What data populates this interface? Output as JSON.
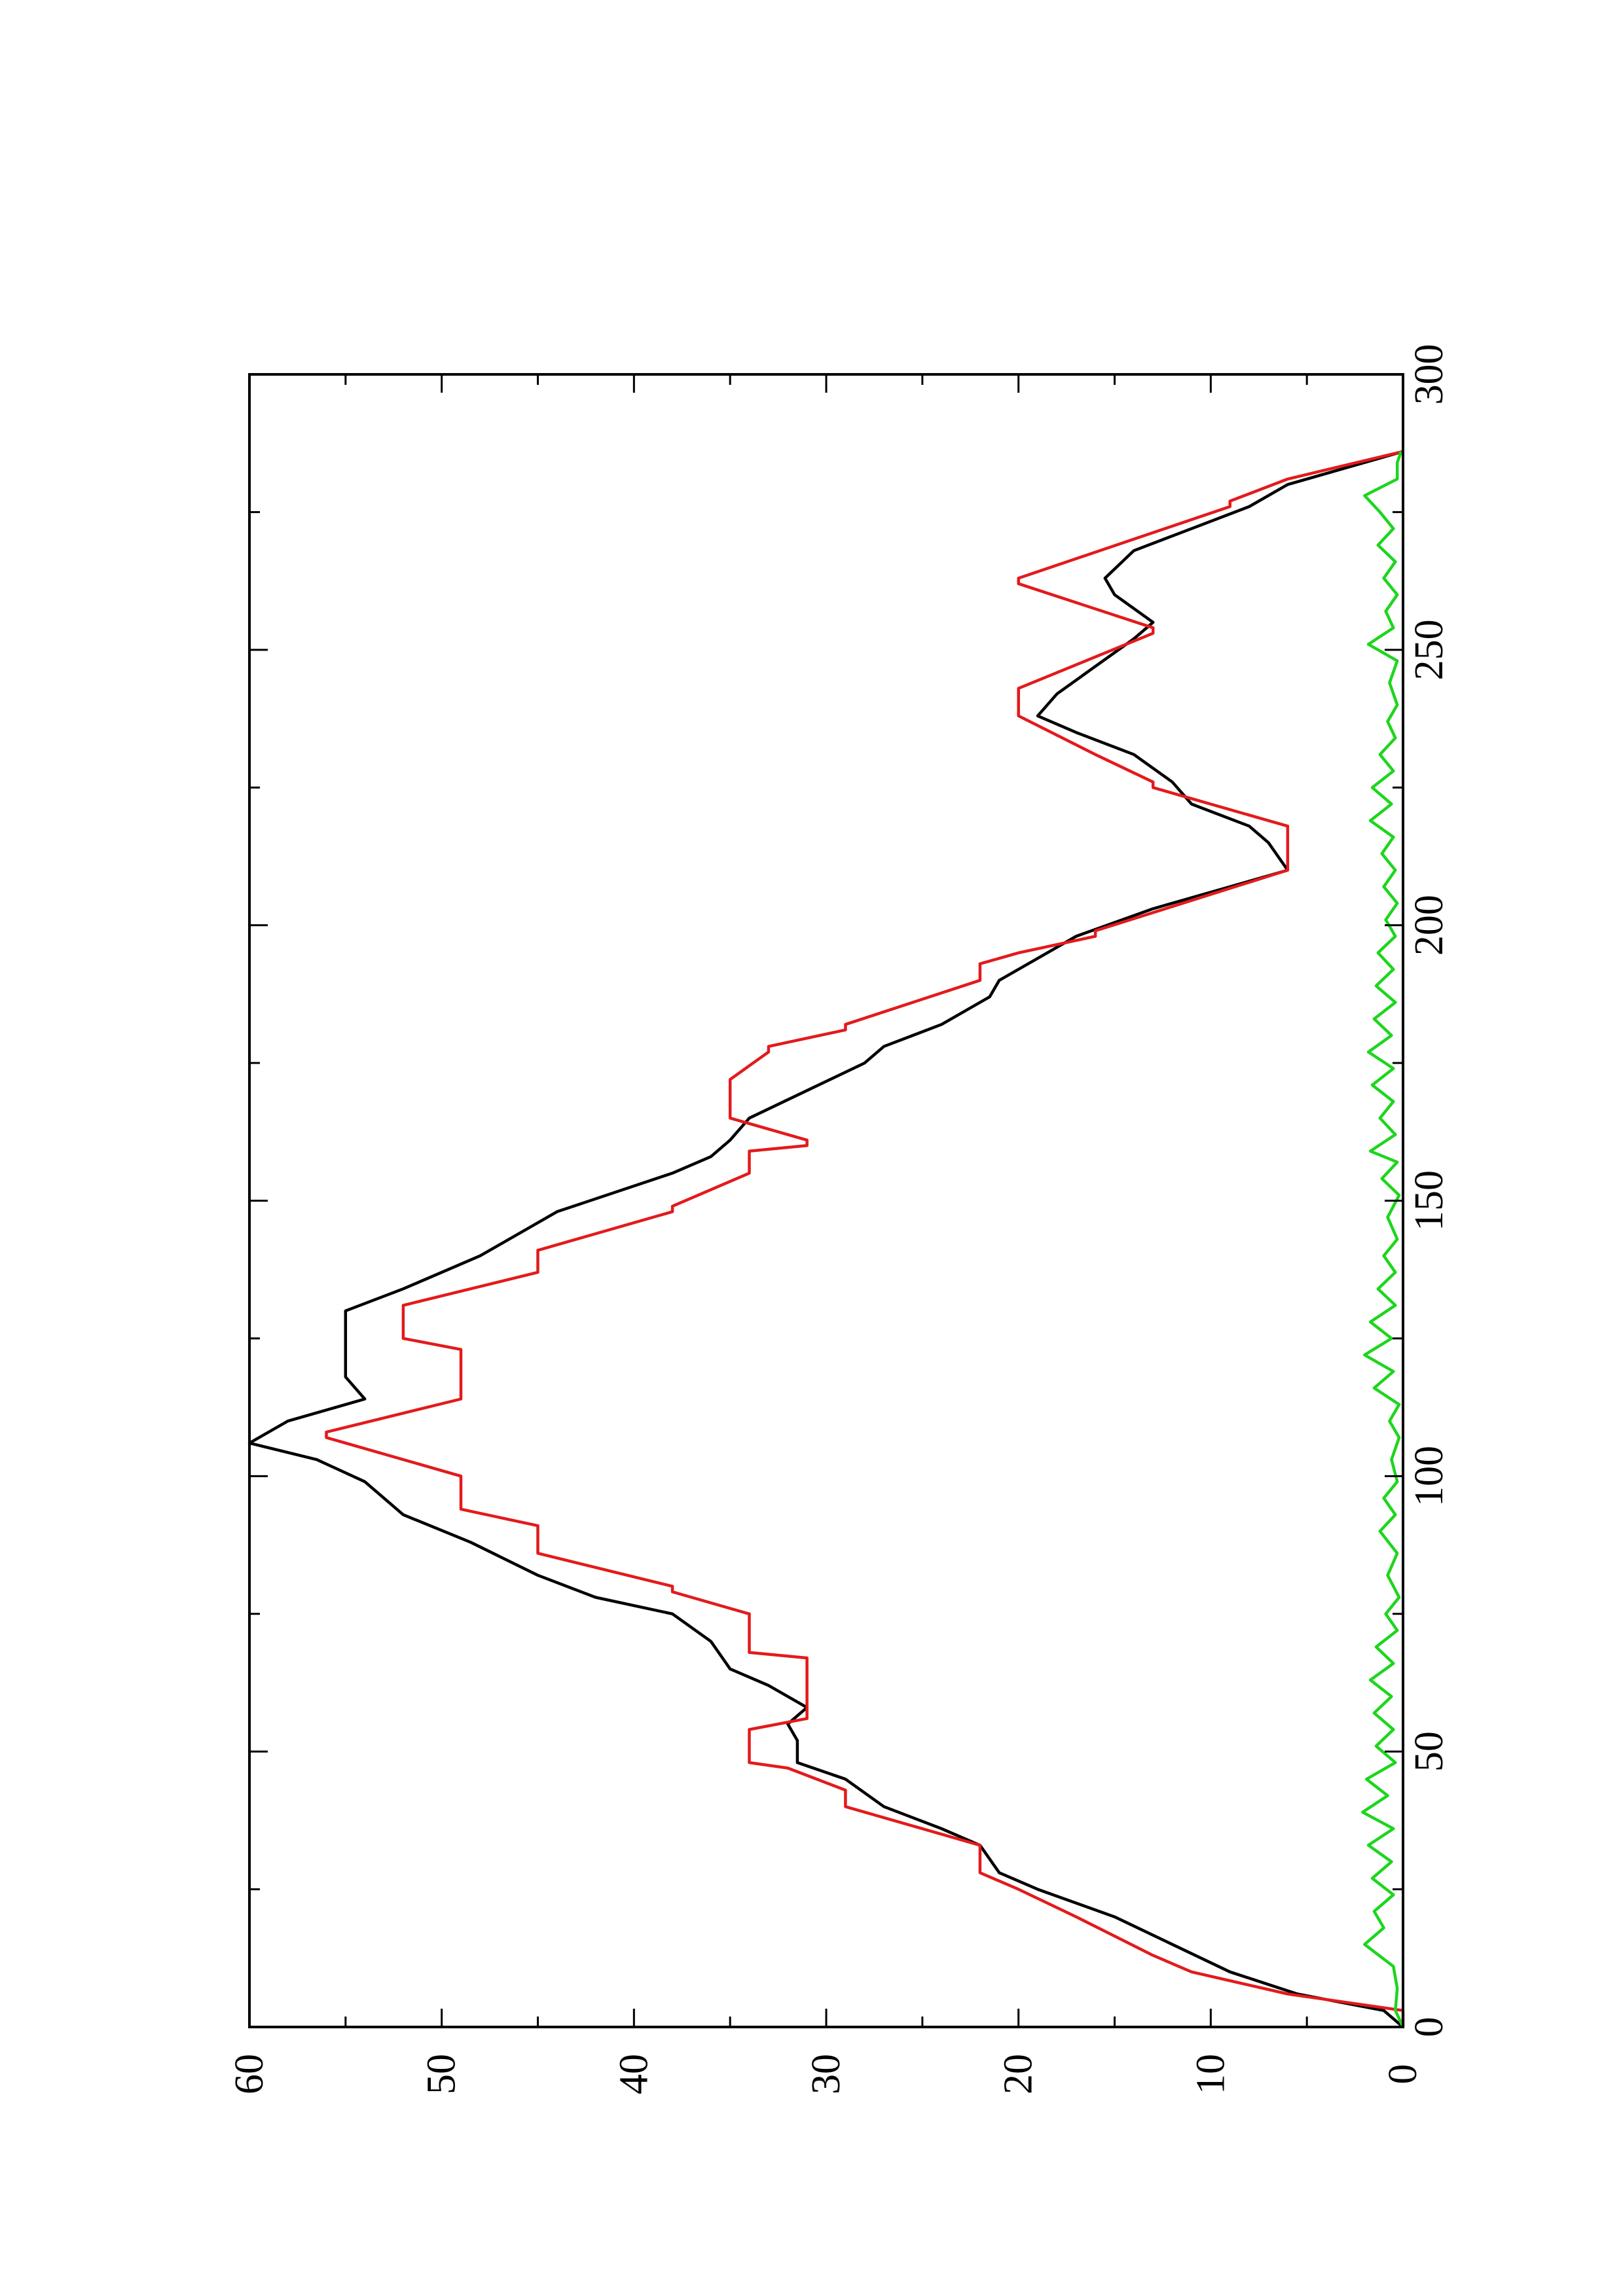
{
  "chart_data": {
    "type": "line",
    "orientation": "rotated-90-ccw",
    "title": "",
    "xlabel": "",
    "ylabel": "",
    "xlim": [
      0,
      300
    ],
    "ylim": [
      0,
      60
    ],
    "x_ticks": [
      "0",
      "50",
      "100",
      "150",
      "200",
      "250",
      "300"
    ],
    "y_ticks": [
      "0",
      "10",
      "20",
      "30",
      "40",
      "50",
      "60"
    ],
    "grid": false,
    "legend": "none",
    "series": [
      {
        "color": "#000000",
        "style": "smooth",
        "points": [
          [
            0,
            0
          ],
          [
            3,
            1
          ],
          [
            6,
            5.5
          ],
          [
            10,
            9
          ],
          [
            15,
            12
          ],
          [
            20,
            15
          ],
          [
            25,
            19
          ],
          [
            28,
            21
          ],
          [
            33,
            22
          ],
          [
            36,
            24
          ],
          [
            40,
            27
          ],
          [
            45,
            29
          ],
          [
            48,
            31.5
          ],
          [
            52,
            31.5
          ],
          [
            55,
            32
          ],
          [
            58,
            31
          ],
          [
            62,
            33
          ],
          [
            65,
            35
          ],
          [
            70,
            36
          ],
          [
            75,
            38
          ],
          [
            78,
            42
          ],
          [
            82,
            45
          ],
          [
            88,
            48.5
          ],
          [
            93,
            52
          ],
          [
            99,
            54
          ],
          [
            103,
            56.5
          ],
          [
            106,
            60
          ],
          [
            110,
            58
          ],
          [
            114,
            54
          ],
          [
            118,
            55
          ],
          [
            122,
            55
          ],
          [
            126,
            55
          ],
          [
            130,
            55
          ],
          [
            134,
            52
          ],
          [
            140,
            48
          ],
          [
            148,
            44
          ],
          [
            155,
            38
          ],
          [
            158,
            36
          ],
          [
            161,
            35
          ],
          [
            165,
            34
          ],
          [
            170,
            31
          ],
          [
            175,
            28
          ],
          [
            178,
            27
          ],
          [
            182,
            24
          ],
          [
            187,
            21.5
          ],
          [
            190,
            21
          ],
          [
            194,
            19
          ],
          [
            198,
            17
          ],
          [
            203,
            13
          ],
          [
            207,
            9
          ],
          [
            210,
            6
          ],
          [
            215,
            7
          ],
          [
            218,
            8
          ],
          [
            222,
            11
          ],
          [
            226,
            12
          ],
          [
            231,
            14
          ],
          [
            235,
            17
          ],
          [
            238,
            19
          ],
          [
            242,
            18
          ],
          [
            247,
            16
          ],
          [
            252,
            14
          ],
          [
            255,
            13
          ],
          [
            260,
            15
          ],
          [
            263,
            15.5
          ],
          [
            268,
            14
          ],
          [
            272,
            11
          ],
          [
            276,
            8
          ],
          [
            280,
            6
          ],
          [
            283,
            3
          ],
          [
            286,
            0
          ]
        ]
      },
      {
        "color": "#e31a1c",
        "style": "linear",
        "points": [
          [
            0,
            0
          ],
          [
            3,
            0
          ],
          [
            6,
            6
          ],
          [
            10,
            11
          ],
          [
            13,
            13
          ],
          [
            20,
            17
          ],
          [
            25,
            20
          ],
          [
            28,
            22
          ],
          [
            33,
            22
          ],
          [
            40,
            29
          ],
          [
            43,
            29
          ],
          [
            47,
            32
          ],
          [
            48,
            34
          ],
          [
            54,
            34
          ],
          [
            56,
            31
          ],
          [
            67,
            31
          ],
          [
            68,
            34
          ],
          [
            75,
            34
          ],
          [
            79,
            38
          ],
          [
            80,
            38
          ],
          [
            86,
            45
          ],
          [
            91,
            45
          ],
          [
            94,
            49
          ],
          [
            100,
            49
          ],
          [
            107,
            56
          ],
          [
            108,
            56
          ],
          [
            114,
            49
          ],
          [
            123,
            49
          ],
          [
            125,
            52
          ],
          [
            131,
            52
          ],
          [
            137,
            45
          ],
          [
            141,
            45
          ],
          [
            148,
            38
          ],
          [
            149,
            38
          ],
          [
            155,
            34
          ],
          [
            159,
            34
          ],
          [
            160,
            31
          ],
          [
            161,
            31
          ],
          [
            165,
            35
          ],
          [
            172,
            35
          ],
          [
            177,
            33
          ],
          [
            178,
            33
          ],
          [
            181,
            29
          ],
          [
            182,
            29
          ],
          [
            190,
            22
          ],
          [
            193,
            22
          ],
          [
            195,
            20
          ],
          [
            198,
            16
          ],
          [
            199,
            16
          ],
          [
            210,
            6
          ],
          [
            218,
            6
          ],
          [
            225,
            13
          ],
          [
            226,
            13
          ],
          [
            231,
            16
          ],
          [
            238,
            20
          ],
          [
            243,
            20
          ],
          [
            253,
            13
          ],
          [
            254,
            13
          ],
          [
            262,
            20
          ],
          [
            263,
            20
          ],
          [
            276,
            9
          ],
          [
            277,
            9
          ],
          [
            281,
            6
          ],
          [
            286,
            0
          ]
        ]
      },
      {
        "color": "#1cd61c",
        "style": "jagged",
        "points": [
          [
            0,
            0
          ],
          [
            3,
            0.4
          ],
          [
            7,
            0.3
          ],
          [
            11,
            0.5
          ],
          [
            15,
            2
          ],
          [
            18,
            1
          ],
          [
            21,
            1.5
          ],
          [
            24,
            0.5
          ],
          [
            27,
            1.6
          ],
          [
            30,
            0.6
          ],
          [
            33,
            1.8
          ],
          [
            36,
            0.5
          ],
          [
            39,
            2.1
          ],
          [
            42,
            0.8
          ],
          [
            45,
            1.9
          ],
          [
            48,
            0.4
          ],
          [
            51,
            1.4
          ],
          [
            54,
            0.5
          ],
          [
            57,
            1.5
          ],
          [
            60,
            0.6
          ],
          [
            63,
            1.7
          ],
          [
            66,
            0.5
          ],
          [
            69,
            1.4
          ],
          [
            72,
            0.3
          ],
          [
            75,
            0.9
          ],
          [
            78,
            0.2
          ],
          [
            82,
            0.8
          ],
          [
            86,
            0.3
          ],
          [
            90,
            1.2
          ],
          [
            93,
            0.4
          ],
          [
            96,
            1.0
          ],
          [
            99,
            0.3
          ],
          [
            103,
            0.6
          ],
          [
            107,
            0.2
          ],
          [
            110,
            0.7
          ],
          [
            113,
            0.2
          ],
          [
            116,
            1.5
          ],
          [
            119,
            0.5
          ],
          [
            122,
            2.0
          ],
          [
            125,
            0.6
          ],
          [
            128,
            1.7
          ],
          [
            131,
            0.4
          ],
          [
            134,
            1.3
          ],
          [
            137,
            0.4
          ],
          [
            140,
            1.0
          ],
          [
            143,
            0.3
          ],
          [
            147,
            0.8
          ],
          [
            151,
            0.2
          ],
          [
            154,
            1.1
          ],
          [
            157,
            0.3
          ],
          [
            159,
            1.7
          ],
          [
            162,
            0.4
          ],
          [
            165,
            1.2
          ],
          [
            168,
            0.5
          ],
          [
            171,
            1.6
          ],
          [
            174,
            0.5
          ],
          [
            177,
            1.8
          ],
          [
            180,
            0.6
          ],
          [
            183,
            1.5
          ],
          [
            186,
            0.4
          ],
          [
            189,
            1.4
          ],
          [
            192,
            0.5
          ],
          [
            195,
            1.3
          ],
          [
            198,
            0.4
          ],
          [
            201,
            0.9
          ],
          [
            204,
            0.3
          ],
          [
            207,
            1.0
          ],
          [
            210,
            0.4
          ],
          [
            213,
            1.1
          ],
          [
            216,
            0.5
          ],
          [
            219,
            1.7
          ],
          [
            222,
            0.6
          ],
          [
            225,
            1.6
          ],
          [
            228,
            0.5
          ],
          [
            231,
            1.2
          ],
          [
            234,
            0.4
          ],
          [
            237,
            0.8
          ],
          [
            240,
            0.3
          ],
          [
            244,
            0.7
          ],
          [
            248,
            0.3
          ],
          [
            251,
            1.8
          ],
          [
            254,
            0.5
          ],
          [
            257,
            0.9
          ],
          [
            260,
            0.3
          ],
          [
            263,
            1.0
          ],
          [
            266,
            0.4
          ],
          [
            269,
            1.3
          ],
          [
            272,
            0.5
          ],
          [
            275,
            1.2
          ],
          [
            278,
            2.0
          ],
          [
            281,
            0.3
          ],
          [
            284,
            0.3
          ],
          [
            286,
            0.1
          ]
        ]
      }
    ]
  }
}
